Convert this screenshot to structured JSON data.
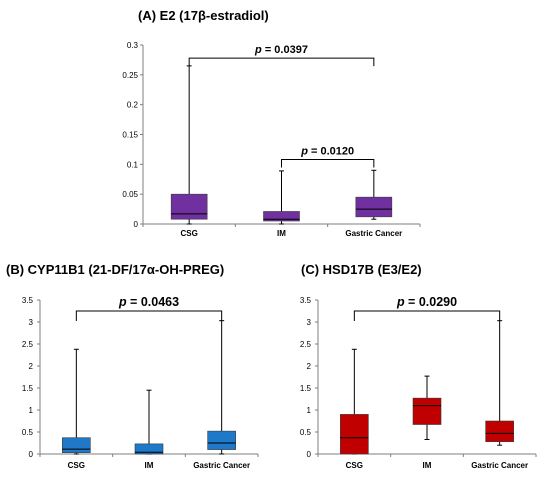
{
  "chart_data": [
    {
      "type": "box",
      "title": "(A) E2 (17β-estradiol)",
      "categories": [
        "CSG",
        "IM",
        "Gastric Cancer"
      ],
      "ylim": [
        0,
        0.3
      ],
      "yticks": [
        "0",
        "0.05",
        "0.1",
        "0.15",
        "0.2",
        "0.25",
        "0.3"
      ],
      "ytick_values": [
        0,
        0.05,
        0.1,
        0.15,
        0.2,
        0.25,
        0.3
      ],
      "color": "#7030a0",
      "boxes": [
        {
          "min": 0.0,
          "q1": 0.008,
          "median": 0.017,
          "q3": 0.05,
          "max": 0.265
        },
        {
          "min": 0.0,
          "q1": 0.005,
          "median": 0.008,
          "q3": 0.021,
          "max": 0.089
        },
        {
          "min": 0.008,
          "q1": 0.012,
          "median": 0.025,
          "q3": 0.045,
          "max": 0.09
        }
      ],
      "comparisons": [
        {
          "from": 0,
          "to": 2,
          "label": "p = 0.0397",
          "y": 0.278
        },
        {
          "from": 1,
          "to": 2,
          "label": "p = 0.0120",
          "y": 0.108
        }
      ]
    },
    {
      "type": "box",
      "title": "(B) CYP11B1 (21-DF/17α-OH-PREG)",
      "categories": [
        "CSG",
        "IM",
        "Gastric Cancer"
      ],
      "ylim": [
        0,
        3.5
      ],
      "yticks": [
        "0",
        "0.5",
        "1",
        "1.5",
        "2",
        "2.5",
        "3",
        "3.5"
      ],
      "ytick_values": [
        0,
        0.5,
        1,
        1.5,
        2,
        2.5,
        3,
        3.5
      ],
      "color": "#1f78c8",
      "boxes": [
        {
          "min": 0.0,
          "q1": 0.03,
          "median": 0.11,
          "q3": 0.37,
          "max": 2.38
        },
        {
          "min": 0.0,
          "q1": 0.0,
          "median": 0.04,
          "q3": 0.23,
          "max": 1.45
        },
        {
          "min": 0.0,
          "q1": 0.1,
          "median": 0.25,
          "q3": 0.52,
          "max": 3.03
        }
      ],
      "comparisons": [
        {
          "from": 0,
          "to": 2,
          "label": "p = 0.0463",
          "y": 3.25
        }
      ]
    },
    {
      "type": "box",
      "title": "(C) HSD17B (E3/E2)",
      "categories": [
        "CSG",
        "IM",
        "Gastric Cancer"
      ],
      "ylim": [
        0,
        3.5
      ],
      "yticks": [
        "0",
        "0.5",
        "1",
        "1.5",
        "2",
        "2.5",
        "3",
        "3.5"
      ],
      "ytick_values": [
        0,
        0.5,
        1,
        1.5,
        2,
        2.5,
        3,
        3.5
      ],
      "color": "#c00000",
      "boxes": [
        {
          "min": 0.0,
          "q1": 0.0,
          "median": 0.37,
          "q3": 0.9,
          "max": 2.38
        },
        {
          "min": 0.33,
          "q1": 0.67,
          "median": 1.1,
          "q3": 1.27,
          "max": 1.77
        },
        {
          "min": 0.2,
          "q1": 0.28,
          "median": 0.47,
          "q3": 0.75,
          "max": 3.03
        }
      ],
      "comparisons": [
        {
          "from": 0,
          "to": 2,
          "label": "p = 0.0290",
          "y": 3.25
        }
      ]
    }
  ]
}
